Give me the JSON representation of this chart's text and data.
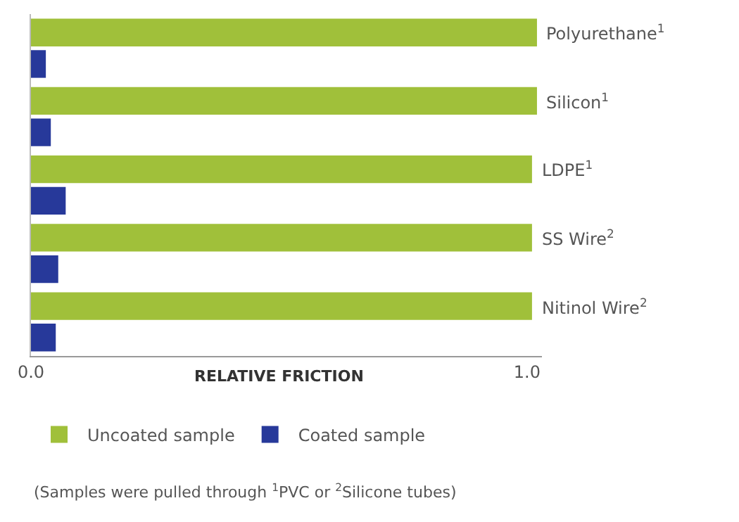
{
  "chart_data": {
    "type": "bar",
    "orientation": "horizontal",
    "categories": [
      "Polyurethane$^{1}$",
      "Silicon$^{1}$",
      "LDPE$^{1}$",
      "SS Wire$^{2}$",
      "Nitinol Wire$^{2}$"
    ],
    "series": [
      {
        "name": "Uncoated sample",
        "color": "#a0c03a",
        "values": [
          1.02,
          1.02,
          1.01,
          1.01,
          1.01
        ]
      },
      {
        "name": "Coated sample",
        "color": "#27399a",
        "values": [
          0.03,
          0.04,
          0.07,
          0.055,
          0.05
        ]
      }
    ],
    "xlabel": "RELATIVE FRICTION",
    "xlim": [
      0,
      1.03
    ],
    "xticks": [
      {
        "value": 0,
        "label": "0.0"
      },
      {
        "value": 1,
        "label": "1.0"
      }
    ],
    "tick_labels": "x",
    "legend": "bottom left",
    "annotations": [
      "(Samples were pulled through $^{1}$PVC or $^{2}$Silicone tubes)"
    ]
  }
}
